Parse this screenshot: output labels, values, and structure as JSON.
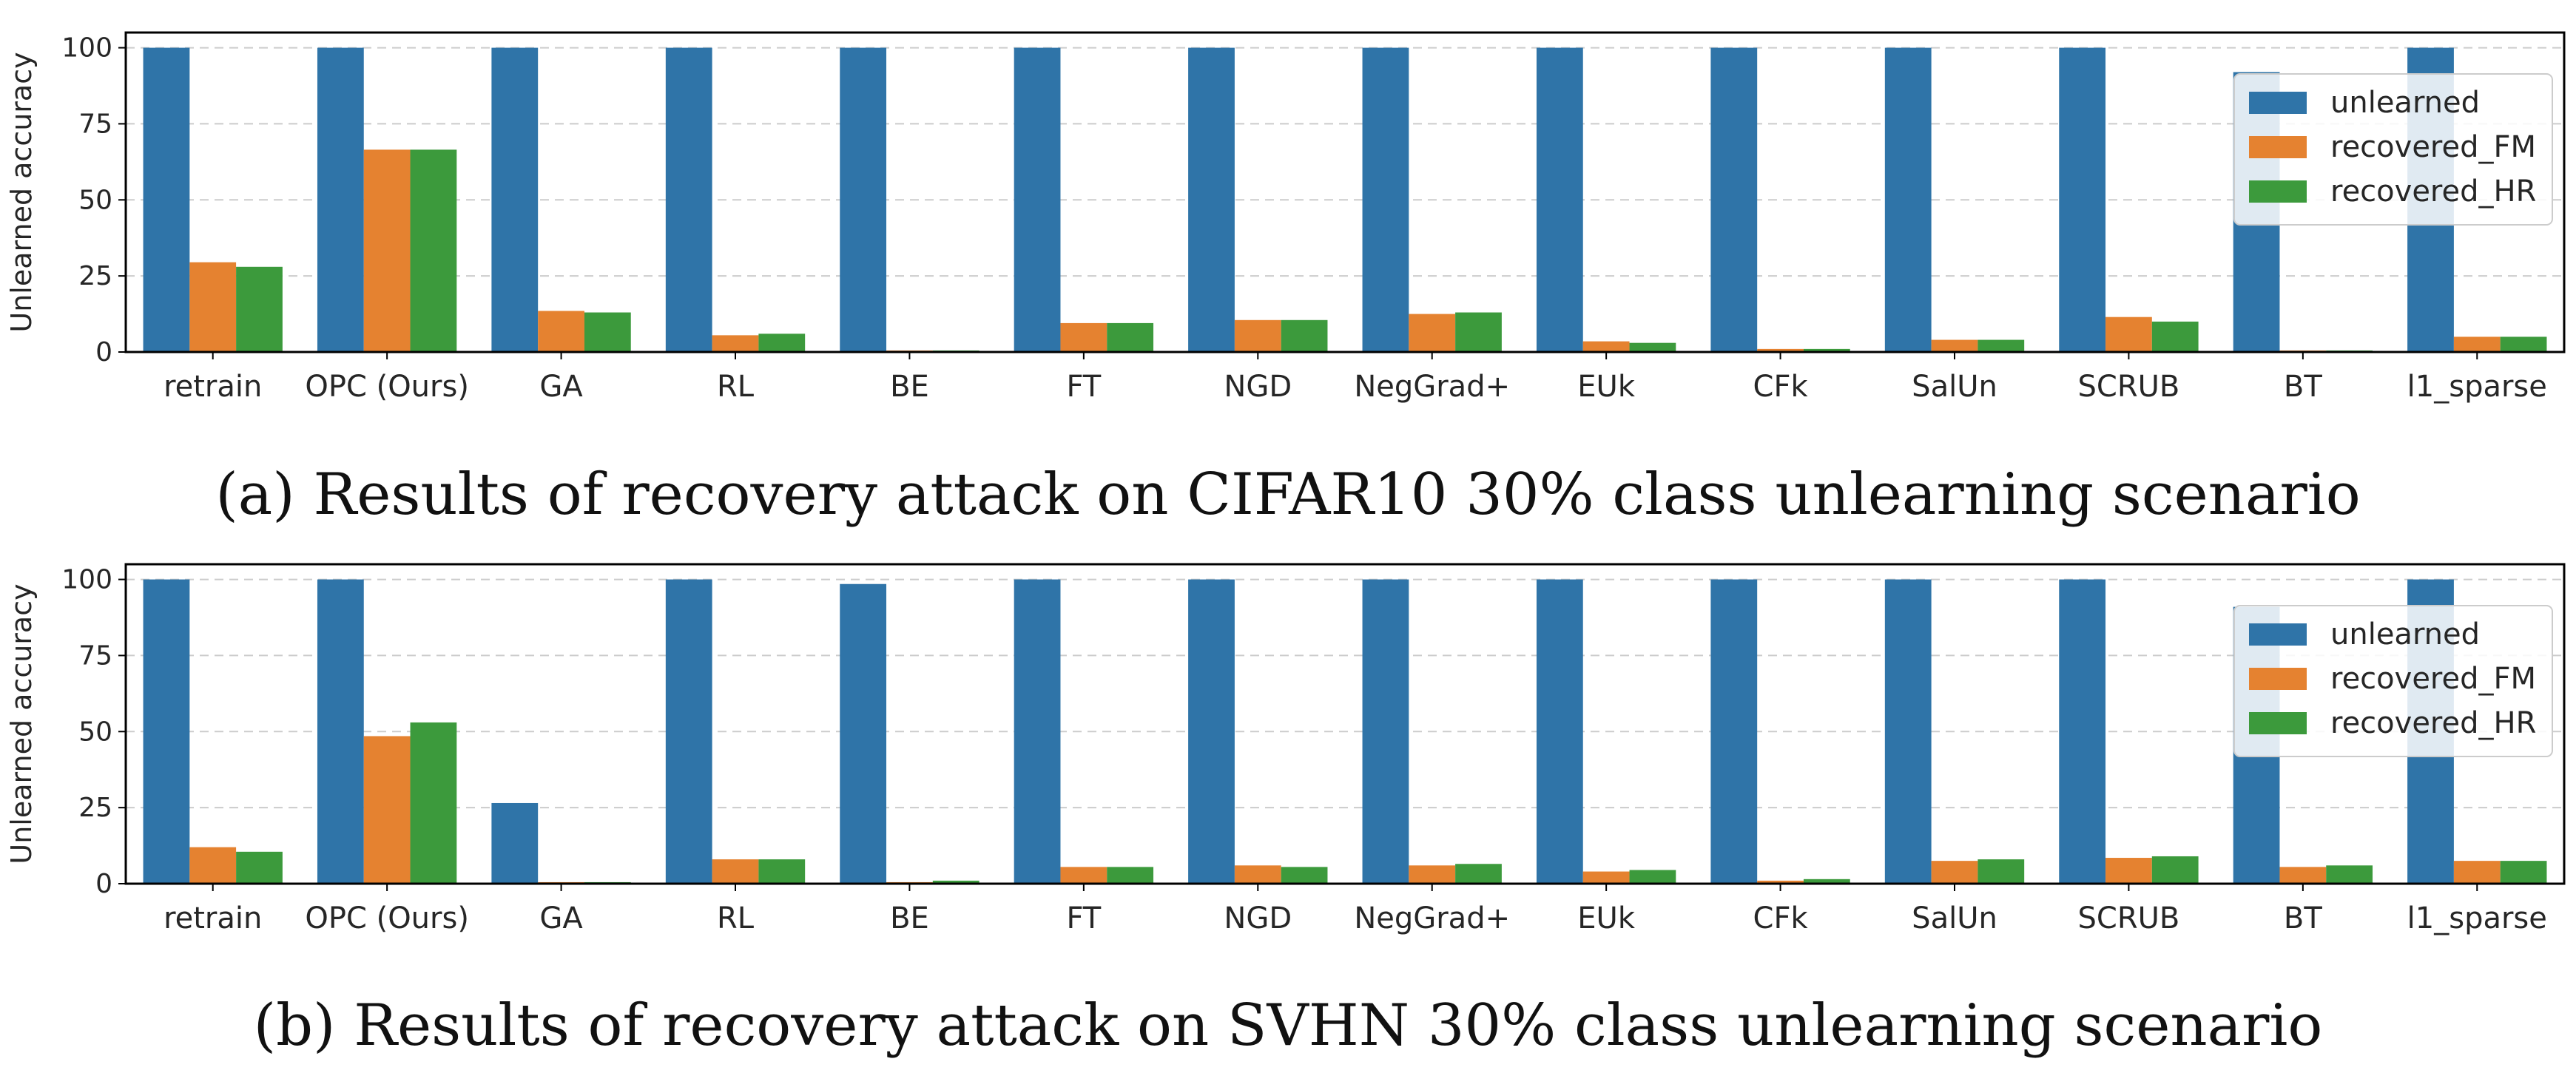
{
  "colors": {
    "unlearned": "#2f74a8",
    "recovered_FM": "#e58230",
    "recovered_HR": "#3c9a3c",
    "grid": "#cccccc",
    "axis": "#000000"
  },
  "chart_data": [
    {
      "type": "bar",
      "caption": "(a) Results of recovery attack on CIFAR10 30% class unlearning scenario",
      "xlabel": "",
      "ylabel": "Unlearned accuracy",
      "ylim": [
        0,
        105
      ],
      "yticks": [
        0,
        25,
        50,
        75,
        100
      ],
      "grid": "y-dashed",
      "legend_position": "top-right",
      "categories": [
        "retrain",
        "OPC (Ours)",
        "GA",
        "RL",
        "BE",
        "FT",
        "NGD",
        "NegGrad+",
        "EUk",
        "CFk",
        "SalUn",
        "SCRUB",
        "BT",
        "l1_sparse"
      ],
      "series": [
        {
          "name": "unlearned",
          "values": [
            100,
            100,
            100,
            100,
            100,
            100,
            100,
            100,
            100,
            100,
            100,
            100,
            92,
            100
          ]
        },
        {
          "name": "recovered_FM",
          "values": [
            29.5,
            66.5,
            13.5,
            5.5,
            0.5,
            9.5,
            10.5,
            12.5,
            3.5,
            1.0,
            4.0,
            11.5,
            0.5,
            5.0
          ]
        },
        {
          "name": "recovered_HR",
          "values": [
            28.0,
            66.5,
            13.0,
            6.0,
            0.5,
            9.5,
            10.5,
            13.0,
            3.0,
            1.0,
            4.0,
            10.0,
            0.5,
            5.0
          ]
        }
      ]
    },
    {
      "type": "bar",
      "caption": "(b) Results of recovery attack on SVHN 30% class unlearning scenario",
      "xlabel": "",
      "ylabel": "Unlearned accuracy",
      "ylim": [
        0,
        105
      ],
      "yticks": [
        0,
        25,
        50,
        75,
        100
      ],
      "grid": "y-dashed",
      "legend_position": "top-right",
      "categories": [
        "retrain",
        "OPC (Ours)",
        "GA",
        "RL",
        "BE",
        "FT",
        "NGD",
        "NegGrad+",
        "EUk",
        "CFk",
        "SalUn",
        "SCRUB",
        "BT",
        "l1_sparse"
      ],
      "series": [
        {
          "name": "unlearned",
          "values": [
            100,
            100,
            26.5,
            100,
            98.5,
            100,
            100,
            100,
            100,
            100,
            100,
            100,
            91,
            100
          ]
        },
        {
          "name": "recovered_FM",
          "values": [
            12.0,
            48.5,
            0.5,
            8.0,
            0.5,
            5.5,
            6.0,
            6.0,
            4.0,
            1.0,
            7.5,
            8.5,
            5.5,
            7.5
          ]
        },
        {
          "name": "recovered_HR",
          "values": [
            10.5,
            53.0,
            0.5,
            8.0,
            1.0,
            5.5,
            5.5,
            6.5,
            4.5,
            1.5,
            8.0,
            9.0,
            6.0,
            7.5
          ]
        }
      ]
    }
  ]
}
